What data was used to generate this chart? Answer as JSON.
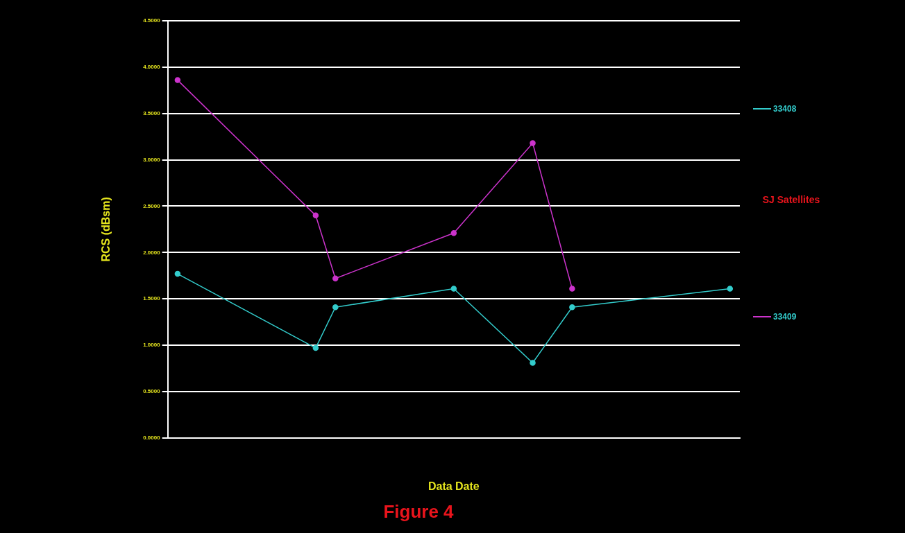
{
  "chart_data": {
    "type": "line",
    "title": "Figure 4",
    "xlabel": "Data Date",
    "ylabel": "RCS (dBsm)",
    "legend_title": "SJ Satellites",
    "categories": [
      null,
      null,
      null,
      null,
      null,
      null,
      null,
      null,
      null,
      null,
      null,
      null,
      null,
      null,
      null,
      null,
      null,
      null,
      null,
      null,
      null,
      null,
      null,
      null,
      null,
      null,
      null,
      null,
      null
    ],
    "ylim": [
      0,
      4.5
    ],
    "yticks": [
      {
        "value": 0,
        "label": "0.0000"
      },
      {
        "value": 0.5,
        "label": "0.5000"
      },
      {
        "value": 1,
        "label": "1.0000"
      },
      {
        "value": 1.5,
        "label": "1.5000"
      },
      {
        "value": 2,
        "label": "2.0000"
      },
      {
        "value": 2.5,
        "label": "2.5000"
      },
      {
        "value": 3,
        "label": "3.0000"
      },
      {
        "value": 3.5,
        "label": "3.5000"
      },
      {
        "value": 4,
        "label": "4.0000"
      },
      {
        "value": 4.5,
        "label": "4.5000"
      }
    ],
    "grid": "y",
    "legend": "right",
    "marker": "circle",
    "line_style": "solid",
    "series": [
      {
        "name": "33408",
        "color": "#33cccc",
        "values": [
          1.77,
          null,
          null,
          null,
          null,
          null,
          null,
          0.97,
          1.41,
          null,
          null,
          null,
          null,
          null,
          1.61,
          null,
          null,
          null,
          0.81,
          null,
          1.41,
          null,
          null,
          null,
          null,
          null,
          null,
          null,
          1.61
        ]
      },
      {
        "name": "33409",
        "color": "#cc33cc",
        "values": [
          3.86,
          null,
          null,
          null,
          null,
          null,
          null,
          2.4,
          1.72,
          null,
          null,
          null,
          null,
          null,
          2.21,
          null,
          null,
          null,
          3.18,
          null,
          1.61,
          null,
          null,
          null,
          null,
          null,
          null,
          null,
          null
        ]
      }
    ]
  }
}
